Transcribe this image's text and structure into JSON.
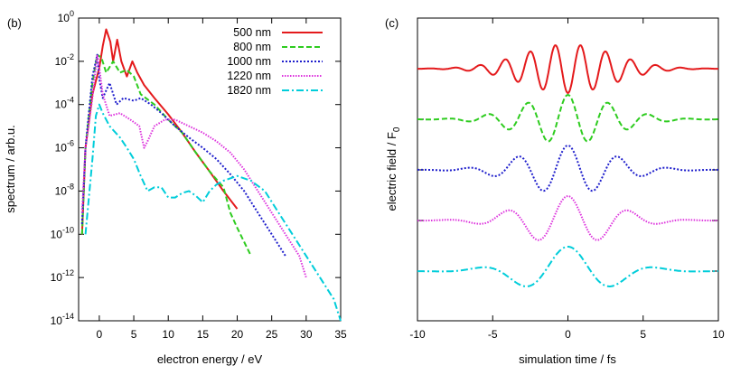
{
  "chart_data": [
    {
      "panel_label": "(b)",
      "type": "line",
      "xlabel": "electron energy / eV",
      "ylabel": "spectrum / arb.u.",
      "xlim": [
        -3,
        35
      ],
      "ylim": [
        1e-14,
        1
      ],
      "y_scale": "log",
      "x_ticks": [
        0,
        5,
        10,
        15,
        20,
        25,
        30,
        35
      ],
      "y_ticks": [
        {
          "mant": "10",
          "exp": "0",
          "v": 1
        },
        {
          "mant": "10",
          "exp": "-2",
          "v": 0.01
        },
        {
          "mant": "10",
          "exp": "-4",
          "v": 0.0001
        },
        {
          "mant": "10",
          "exp": "-6",
          "v": 1e-06
        },
        {
          "mant": "10",
          "exp": "-8",
          "v": 1e-08
        },
        {
          "mant": "10",
          "exp": "-10",
          "v": 1e-10
        },
        {
          "mant": "10",
          "exp": "-12",
          "v": 1e-12
        },
        {
          "mant": "10",
          "exp": "-14",
          "v": 1e-14
        }
      ],
      "legend_position": "top-right",
      "series": [
        {
          "name": "500 nm",
          "color": "#e41a1c",
          "dash": "solid",
          "points": [
            [
              -2.5,
              1e-10
            ],
            [
              -2,
              1e-06
            ],
            [
              -1,
              0.0003
            ],
            [
              0,
              0.005
            ],
            [
              0.5,
              0.05
            ],
            [
              1,
              0.3
            ],
            [
              1.6,
              0.08
            ],
            [
              2,
              0.01
            ],
            [
              2.6,
              0.1
            ],
            [
              3.2,
              0.01
            ],
            [
              4,
              0.002
            ],
            [
              4.8,
              0.01
            ],
            [
              5.5,
              0.003
            ],
            [
              6.5,
              0.0008
            ],
            [
              8,
              0.0002
            ],
            [
              10,
              3.5e-05
            ],
            [
              12,
              5e-06
            ],
            [
              14,
              6e-07
            ],
            [
              16,
              8e-08
            ],
            [
              18,
              1e-08
            ],
            [
              20,
              1.5e-09
            ]
          ]
        },
        {
          "name": "800 nm",
          "color": "#2ecc1f",
          "dash": "6,3",
          "points": [
            [
              -2.5,
              1e-10
            ],
            [
              -2,
              1e-06
            ],
            [
              -1,
              0.001
            ],
            [
              -0.3,
              0.02
            ],
            [
              0.3,
              0.015
            ],
            [
              1,
              0.003
            ],
            [
              2,
              0.01
            ],
            [
              3,
              0.003
            ],
            [
              4,
              0.004
            ],
            [
              5,
              0.002
            ],
            [
              6,
              0.0003
            ],
            [
              8,
              0.0001
            ],
            [
              10,
              2e-05
            ],
            [
              12,
              5e-06
            ],
            [
              14,
              6e-07
            ],
            [
              16,
              8e-08
            ],
            [
              18,
              1.5e-08
            ],
            [
              19,
              1e-09
            ],
            [
              20,
              2e-10
            ],
            [
              22,
              1e-11
            ]
          ]
        },
        {
          "name": "1000 nm",
          "color": "#1f1fcc",
          "dash": "2,2",
          "points": [
            [
              -2.5,
              3e-10
            ],
            [
              -2,
              1e-06
            ],
            [
              -1,
              0.002
            ],
            [
              -0.3,
              0.02
            ],
            [
              0,
              0.0015
            ],
            [
              0.5,
              0.0002
            ],
            [
              1.5,
              0.001
            ],
            [
              2.5,
              0.0001
            ],
            [
              3.5,
              0.0002
            ],
            [
              5,
              0.00015
            ],
            [
              6,
              0.0002
            ],
            [
              7.5,
              0.0001
            ],
            [
              9,
              4e-05
            ],
            [
              11,
              1e-05
            ],
            [
              13,
              3e-06
            ],
            [
              15,
              1e-06
            ],
            [
              17,
              3e-07
            ],
            [
              19,
              6e-08
            ],
            [
              21,
              1e-08
            ],
            [
              23,
              1e-09
            ],
            [
              25,
              1e-10
            ],
            [
              27,
              1e-11
            ]
          ]
        },
        {
          "name": "1220 nm",
          "color": "#dd33dd",
          "dash": "1.5,1.5",
          "points": [
            [
              -2.5,
              1e-09
            ],
            [
              -2,
              1e-06
            ],
            [
              -1,
              0.0002
            ],
            [
              -0.3,
              0.02
            ],
            [
              0,
              0.005
            ],
            [
              0.5,
              0.0003
            ],
            [
              1.5,
              3e-05
            ],
            [
              3,
              4e-05
            ],
            [
              4.5,
              2e-05
            ],
            [
              5.8,
              1e-05
            ],
            [
              6.5,
              1e-06
            ],
            [
              7,
              2e-06
            ],
            [
              8,
              1e-05
            ],
            [
              9.5,
              2e-05
            ],
            [
              11,
              2e-05
            ],
            [
              13,
              1e-05
            ],
            [
              15,
              5e-06
            ],
            [
              17,
              2e-06
            ],
            [
              19,
              6e-07
            ],
            [
              21,
              1e-07
            ],
            [
              23,
              1e-08
            ],
            [
              25,
              1e-09
            ],
            [
              27,
              1e-10
            ],
            [
              29,
              1e-11
            ],
            [
              30,
              1e-12
            ]
          ]
        },
        {
          "name": "1820 nm",
          "color": "#00cdda",
          "dash": "8,3,2,3",
          "points": [
            [
              -2,
              1e-10
            ],
            [
              -1,
              3e-07
            ],
            [
              -0.5,
              3e-05
            ],
            [
              0,
              0.0001
            ],
            [
              0.5,
              4e-05
            ],
            [
              1.5,
              1e-05
            ],
            [
              3,
              3e-06
            ],
            [
              4,
              1e-06
            ],
            [
              5,
              3e-07
            ],
            [
              6,
              5e-08
            ],
            [
              7,
              1e-08
            ],
            [
              8,
              1.5e-08
            ],
            [
              9,
              1.5e-08
            ],
            [
              10,
              5e-09
            ],
            [
              11,
              5e-09
            ],
            [
              12,
              8e-09
            ],
            [
              13,
              1e-08
            ],
            [
              14,
              6e-09
            ],
            [
              15,
              3e-09
            ],
            [
              16,
              1e-08
            ],
            [
              17,
              2e-08
            ],
            [
              18,
              3e-08
            ],
            [
              20,
              5e-08
            ],
            [
              22,
              3e-08
            ],
            [
              24,
              1e-08
            ],
            [
              26,
              1e-09
            ],
            [
              28,
              1e-10
            ],
            [
              30,
              1e-11
            ],
            [
              32,
              1e-12
            ],
            [
              34,
              1e-13
            ],
            [
              35,
              1e-14
            ]
          ]
        }
      ]
    },
    {
      "panel_label": "(c)",
      "type": "line",
      "xlabel": "simulation time / fs",
      "ylabel_main": "electric field / F",
      "ylabel_sub": "0",
      "xlim": [
        -10,
        10
      ],
      "x_ticks": [
        -10,
        -5,
        0,
        5,
        10
      ],
      "traces": [
        {
          "name": "500 nm",
          "color": "#e41a1c",
          "dash": "solid",
          "period_fs": 1.67,
          "amp": 1.0,
          "sigma_fs": 3.0,
          "sign": 1
        },
        {
          "name": "800 nm",
          "color": "#2ecc1f",
          "dash": "6,3",
          "period_fs": 2.67,
          "amp": 1.0,
          "sigma_fs": 3.0,
          "sign": -1
        },
        {
          "name": "1000 nm",
          "color": "#1f1fcc",
          "dash": "2,2",
          "period_fs": 3.34,
          "amp": 1.0,
          "sigma_fs": 3.0,
          "sign": -1
        },
        {
          "name": "1220 nm",
          "color": "#dd33dd",
          "dash": "1.5,1.5",
          "period_fs": 4.07,
          "amp": 1.0,
          "sigma_fs": 3.0,
          "sign": -1
        },
        {
          "name": "1820 nm",
          "color": "#00cdda",
          "dash": "8,3,2,3",
          "period_fs": 6.07,
          "amp": 1.0,
          "sigma_fs": 3.0,
          "sign": -1
        }
      ]
    }
  ]
}
